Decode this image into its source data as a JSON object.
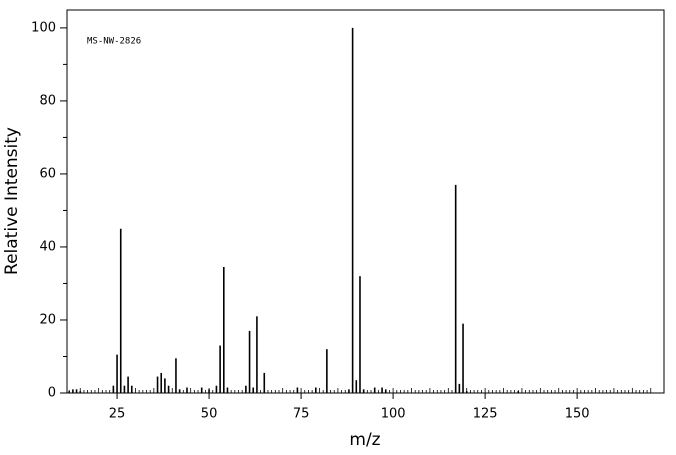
{
  "chart_data": {
    "type": "stem",
    "annotation": "MS-NW-2826",
    "x_label": "m/z",
    "y_label": "Relative Intensity",
    "x": [
      12,
      13,
      14,
      15,
      24,
      25,
      26,
      27,
      28,
      29,
      36,
      37,
      38,
      39,
      41,
      42,
      44,
      48,
      50,
      52,
      53,
      54,
      55,
      60,
      61,
      62,
      63,
      65,
      74,
      79,
      88,
      89,
      90,
      91,
      92,
      82,
      95,
      97,
      98,
      117,
      118,
      119,
      120,
      134
    ],
    "values": [
      0.5,
      1,
      1,
      0.5,
      2,
      10.5,
      45,
      2,
      4.5,
      2,
      4.5,
      5.5,
      4,
      2,
      9.5,
      1,
      1.5,
      1.5,
      1,
      2,
      13,
      34.5,
      1.5,
      2,
      17,
      1.5,
      21,
      5.5,
      1.5,
      1.5,
      1,
      100,
      3.5,
      32,
      1,
      12,
      1.5,
      1.5,
      1,
      57,
      2.5,
      19,
      0.5,
      0.5
    ],
    "color": "#000000",
    "xlim": [
      11.4,
      173.6
    ],
    "ylim": [
      0,
      104.9
    ],
    "xticks": [
      25,
      50,
      75,
      100,
      125,
      150
    ],
    "yticks": [
      0,
      20,
      40,
      60,
      80,
      100
    ]
  }
}
